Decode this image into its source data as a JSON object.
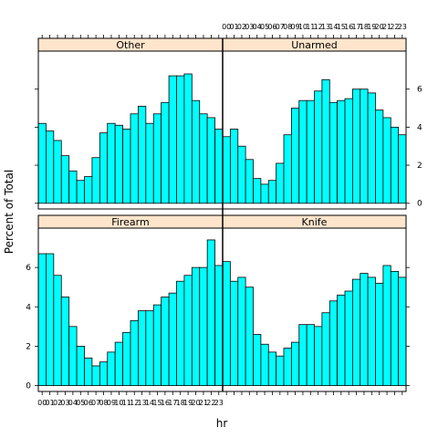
{
  "chart_data": {
    "type": "bar",
    "layout": "trellis 2x2 histogram panels",
    "xlabel": "hr",
    "ylabel": "Percent of Total",
    "x_tick_labels": [
      "00",
      "01",
      "02",
      "03",
      "04",
      "05",
      "06",
      "07",
      "08",
      "09",
      "10",
      "11",
      "12",
      "13",
      "14",
      "15",
      "16",
      "17",
      "18",
      "19",
      "20",
      "21",
      "22",
      "23"
    ],
    "y_ticks": [
      0,
      2,
      4,
      6
    ],
    "ylim": [
      -0.3,
      8.0
    ],
    "colors": {
      "bar_fill": "#00ffff",
      "strip_fill": "#ffe5cc",
      "outline": "#000000"
    },
    "panels": [
      {
        "name": "Other",
        "position": "top-left",
        "values": [
          4.2,
          3.8,
          3.3,
          2.5,
          1.7,
          1.2,
          1.4,
          2.4,
          3.7,
          4.2,
          4.1,
          3.9,
          4.7,
          5.1,
          4.2,
          4.7,
          5.3,
          6.7,
          6.7,
          6.8,
          5.4,
          4.7,
          4.5,
          3.9
        ]
      },
      {
        "name": "Unarmed",
        "position": "top-right",
        "values": [
          3.5,
          3.9,
          3.0,
          2.3,
          1.3,
          1.0,
          1.2,
          2.1,
          3.6,
          5.0,
          5.4,
          5.4,
          5.9,
          6.5,
          5.3,
          5.4,
          5.5,
          6.0,
          6.0,
          5.8,
          4.9,
          4.5,
          4.0,
          3.6
        ]
      },
      {
        "name": "Firearm",
        "position": "bottom-left",
        "values": [
          6.7,
          6.7,
          5.6,
          4.5,
          3.0,
          2.0,
          1.4,
          1.0,
          1.2,
          1.7,
          2.2,
          2.7,
          3.3,
          3.8,
          3.8,
          4.1,
          4.5,
          4.7,
          5.3,
          5.6,
          6.0,
          6.0,
          7.4,
          6.1
        ]
      },
      {
        "name": "Knife",
        "position": "bottom-right",
        "values": [
          6.3,
          5.3,
          5.5,
          5.0,
          2.6,
          2.1,
          1.7,
          1.5,
          1.9,
          2.2,
          3.1,
          3.1,
          3.0,
          3.7,
          4.3,
          4.6,
          4.8,
          5.4,
          5.7,
          5.5,
          5.2,
          6.1,
          5.8,
          5.5
        ]
      }
    ]
  }
}
